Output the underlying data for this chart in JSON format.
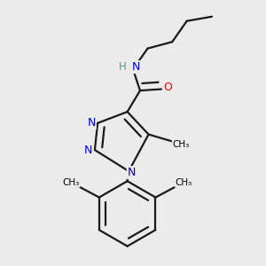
{
  "background_color": "#ebebeb",
  "atom_colors": {
    "C": "#000000",
    "N": "#0000cd",
    "O": "#ff0000",
    "H": "#4a9e8e"
  },
  "bond_color": "#1a1a1a",
  "bond_width": 1.6,
  "figsize": [
    3.0,
    3.0
  ],
  "dpi": 100,
  "xlim": [
    0.05,
    0.85
  ],
  "ylim": [
    0.03,
    0.97
  ]
}
